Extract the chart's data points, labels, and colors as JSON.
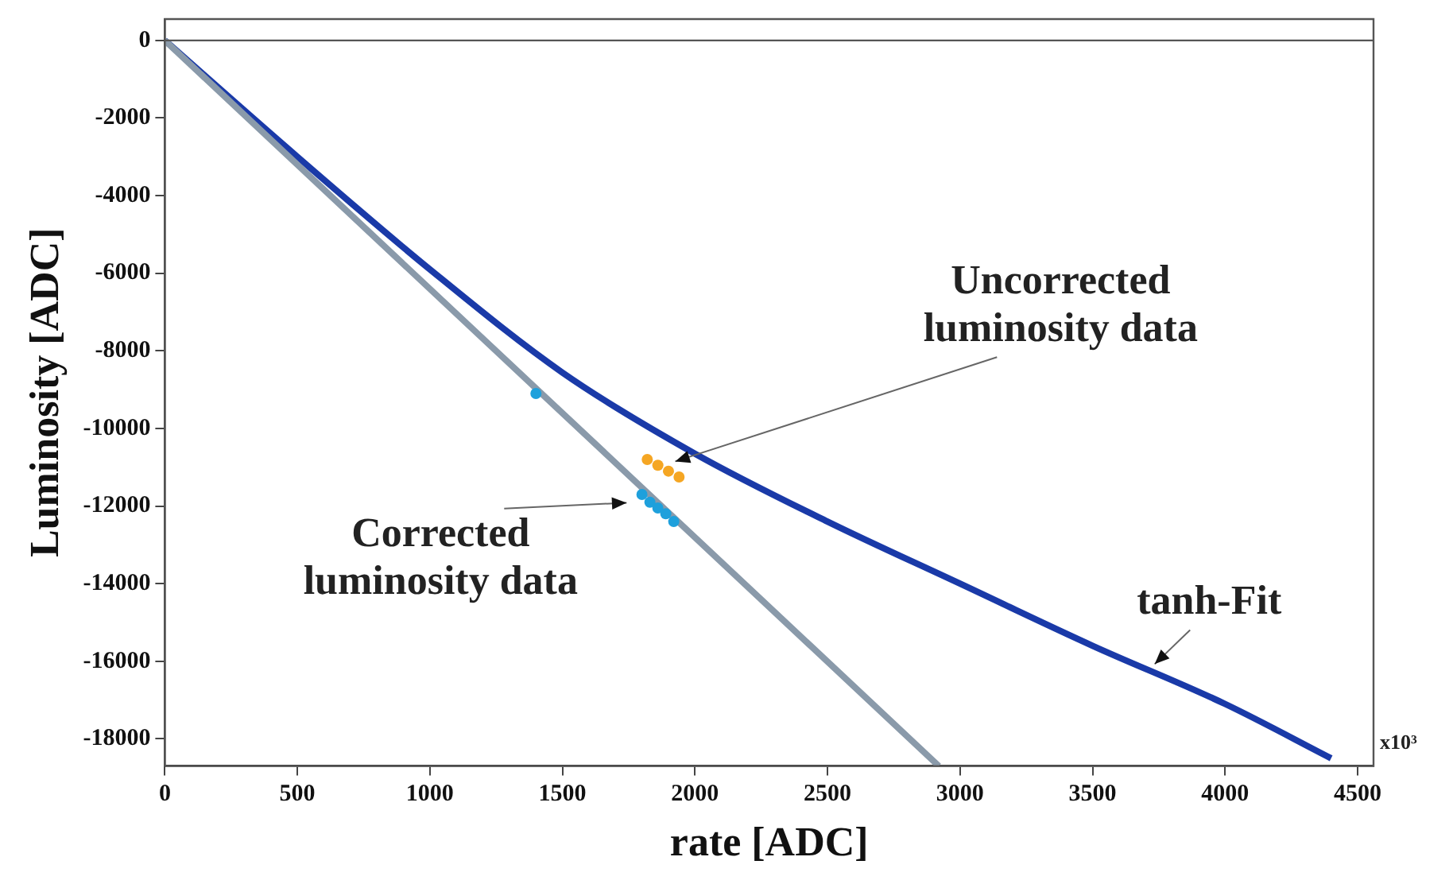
{
  "chart_data": {
    "type": "line",
    "xlabel": "rate [ADC]",
    "ylabel": "Luminosity [ADC]",
    "xlim": [
      0,
      4560
    ],
    "xticks": [
      0,
      500,
      1000,
      1500,
      2000,
      2500,
      3000,
      3500,
      4000,
      4500
    ],
    "ylim": [
      -18700,
      550
    ],
    "yticks": [
      0,
      -2000,
      -4000,
      -6000,
      -8000,
      -10000,
      -12000,
      -14000,
      -16000,
      -18000
    ],
    "grid": false,
    "legend": false,
    "ref_lines": [
      {
        "axis": "y",
        "value": 0,
        "color": "#555555"
      }
    ],
    "series": [
      {
        "color": "#8a9aaa",
        "x": [
          0,
          2920
        ],
        "values": [
          0,
          -18700
        ]
      },
      {
        "color": "#1a3aa8",
        "x": [
          0,
          500,
          1000,
          1500,
          2000,
          2500,
          3000,
          3500,
          4000,
          4400
        ],
        "values": [
          0,
          -3000,
          -5900,
          -8560,
          -10650,
          -12400,
          -14000,
          -15600,
          -17100,
          -18500
        ]
      },
      {
        "type": "scatter",
        "color": "#f5a623",
        "x": [
          1820,
          1860,
          1900,
          1940
        ],
        "values": [
          -10800,
          -10950,
          -11100,
          -11250
        ]
      },
      {
        "type": "scatter",
        "color": "#1ea0dc",
        "x": [
          1400,
          1800,
          1830,
          1860,
          1890,
          1920
        ],
        "values": [
          -9100,
          -11700,
          -11900,
          -12050,
          -12200,
          -12400
        ]
      }
    ],
    "annotations": [
      {
        "text": "Uncorrected\nluminosity data",
        "x": 1880,
        "y": -10950
      },
      {
        "text": "Corrected\nluminosity data",
        "x": 1790,
        "y": -11900
      },
      {
        "text": "tanh-Fit",
        "x": 3700,
        "y": -16300
      },
      "x10³"
    ]
  }
}
